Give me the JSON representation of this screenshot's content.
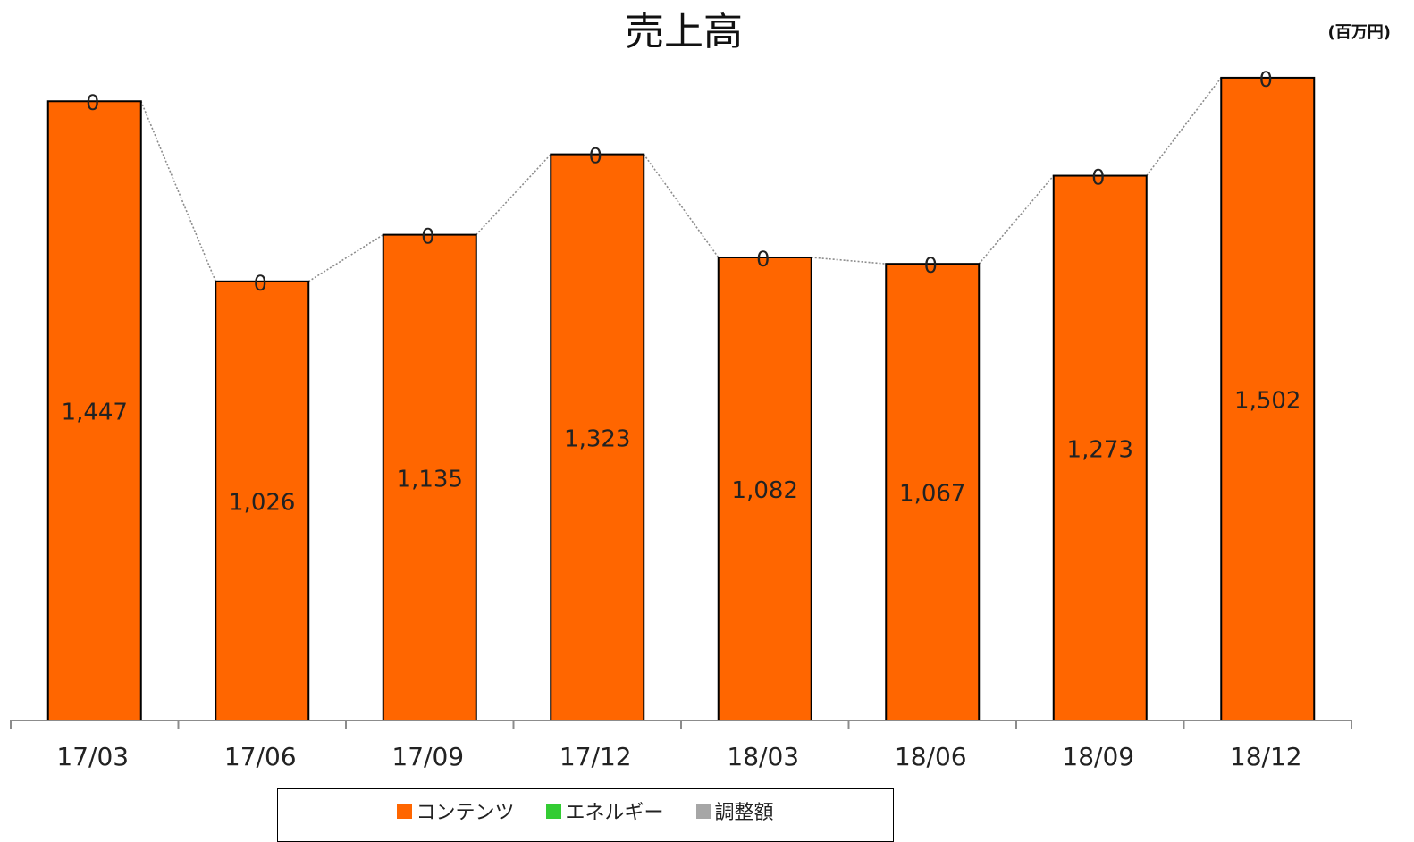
{
  "chart_data": {
    "type": "bar",
    "title": "売上高",
    "unit_label": "(百万円)",
    "categories": [
      "17/03",
      "17/06",
      "17/09",
      "17/12",
      "18/03",
      "18/06",
      "18/09",
      "18/12"
    ],
    "series": [
      {
        "name": "コンテンツ",
        "color": "#ff6600",
        "values": [
          1447,
          1026,
          1135,
          1323,
          1082,
          1067,
          1273,
          1502
        ]
      },
      {
        "name": "エネルギー",
        "color": "#33cc33",
        "values": [
          0,
          0,
          0,
          0,
          0,
          0,
          0,
          0
        ]
      },
      {
        "name": "調整額",
        "color": "#a6a6a6",
        "values": [
          0,
          0,
          0,
          0,
          0,
          0,
          0,
          0
        ]
      }
    ],
    "top_labels": [
      "0",
      "0",
      "0",
      "0",
      "0",
      "0",
      "0",
      "0"
    ],
    "value_labels": [
      "1,447",
      "1,026",
      "1,135",
      "1,323",
      "1,082",
      "1,067",
      "1,273",
      "1,502"
    ],
    "ylim": [
      0,
      1600
    ],
    "grid": false,
    "legend_position": "bottom",
    "connector_line": "dotted"
  }
}
